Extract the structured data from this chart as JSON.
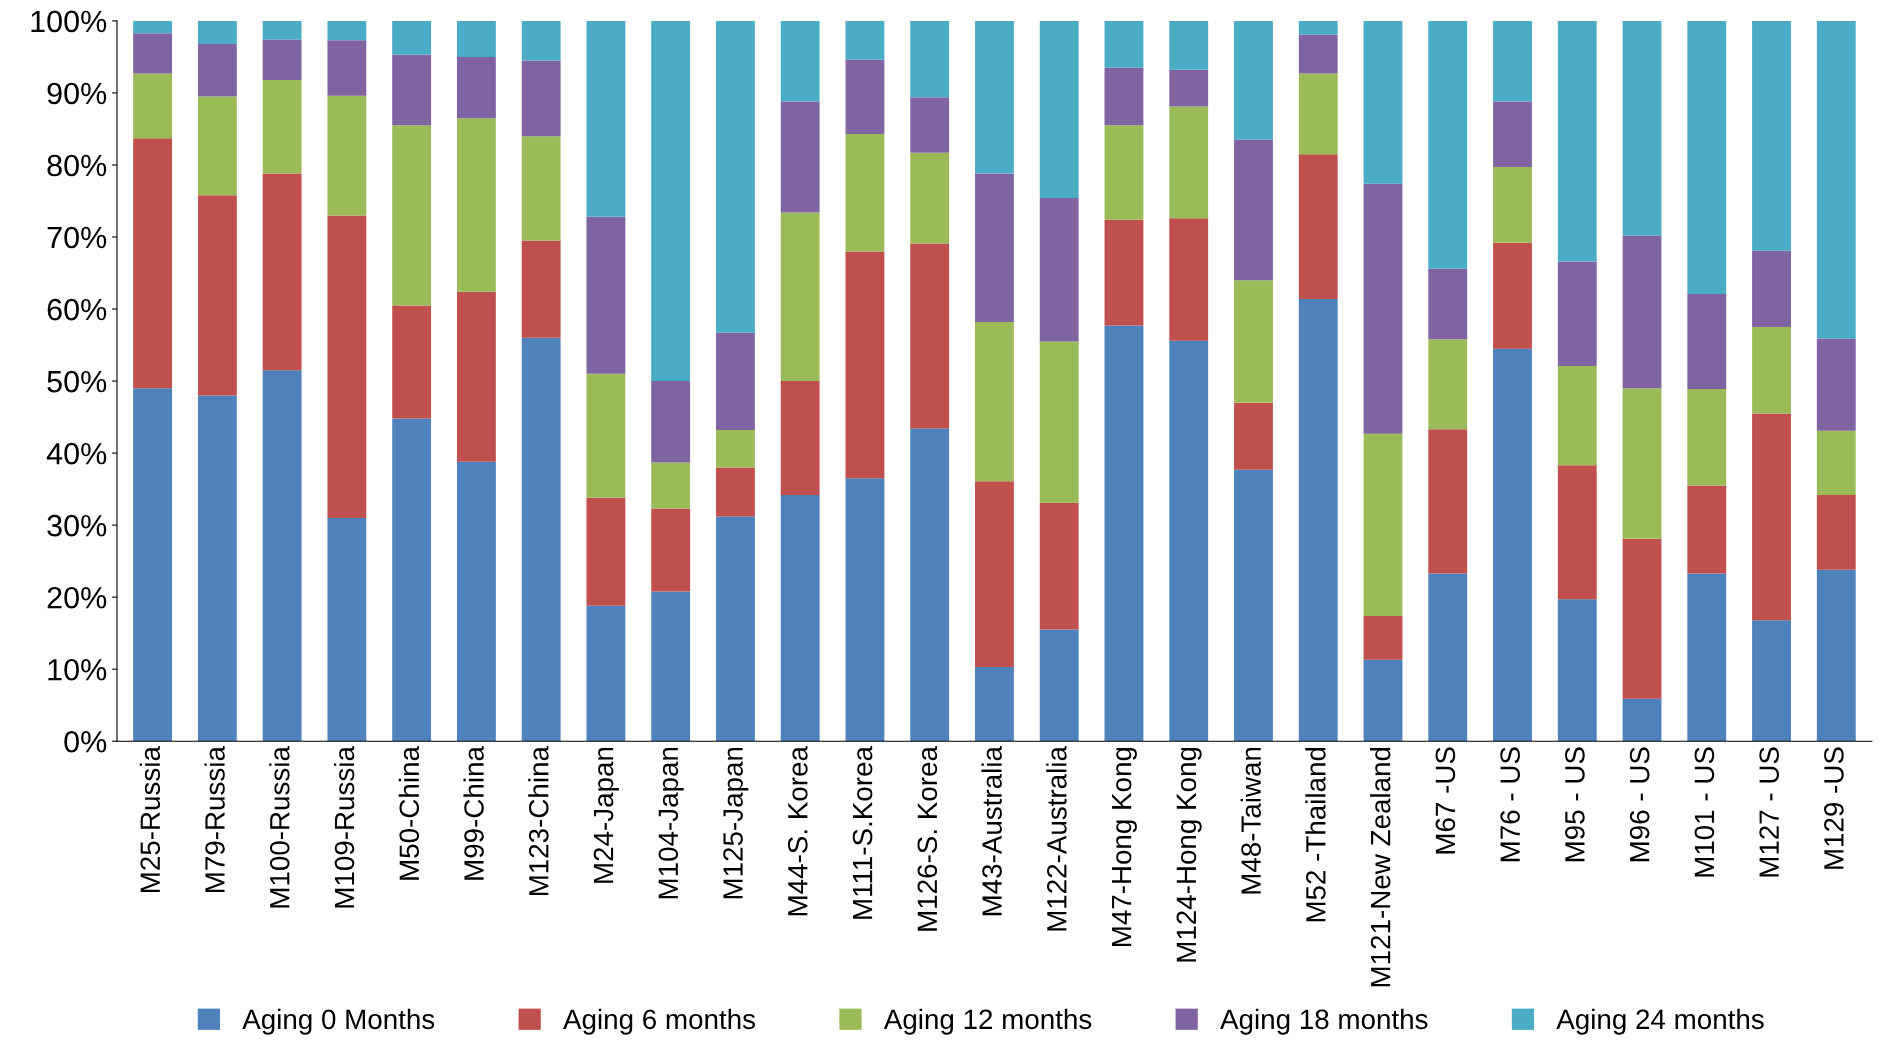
{
  "chart_data": {
    "type": "bar",
    "stacked": true,
    "legend": "bottom",
    "grid": false,
    "categories": [
      "M25-Russia",
      "M79-Russia",
      "M100-Russia",
      "M109-Russia",
      "M50-China",
      "M99-China",
      "M123-China",
      "M24-Japan",
      "M104-Japan",
      "M125-Japan",
      "M44-S. Korea",
      "M111-S.Korea",
      "M126-S. Korea",
      "M43-Australia",
      "M122-Australia",
      "M47-Hong Kong",
      "M124-Hong Kong",
      "M48-Taiwan",
      "M52 -Thailand",
      "M121-New Zealand",
      "M67 -US",
      "M76 - US",
      "M95 - US",
      "M96 - US",
      "M101 - US",
      "M127 - US",
      "M129 -US"
    ],
    "ylim": [
      0,
      100
    ],
    "yticks": [
      {
        "value": 0,
        "label": "0%"
      },
      {
        "value": 10,
        "label": "10%"
      },
      {
        "value": 20,
        "label": "20%"
      },
      {
        "value": 30,
        "label": "30%"
      },
      {
        "value": 40,
        "label": "40%"
      },
      {
        "value": 50,
        "label": "50%"
      },
      {
        "value": 60,
        "label": "60%"
      },
      {
        "value": 70,
        "label": "70%"
      },
      {
        "value": 80,
        "label": "80%"
      },
      {
        "value": 90,
        "label": "90%"
      },
      {
        "value": 100,
        "label": "100%"
      }
    ],
    "series": [
      {
        "name": "Aging 0 Months",
        "color": "#4f81bd",
        "values": [
          49,
          48,
          51.5,
          31,
          44.8,
          38.8,
          56,
          18.8,
          20.8,
          31.2,
          34.2,
          36.5,
          43.4,
          10.3,
          15.5,
          57.7,
          55.6,
          37.7,
          61.4,
          11.3,
          23.3,
          54.5,
          19.7,
          5.9,
          23.3,
          16.8,
          23.8
        ]
      },
      {
        "name": "Aging 6 months",
        "color": "#c0504d",
        "values": [
          34.7,
          27.8,
          27.3,
          42,
          15.7,
          23.6,
          13.5,
          15,
          11.5,
          6.8,
          15.8,
          31.5,
          25.7,
          25.8,
          17.6,
          14.7,
          17,
          9.3,
          20.1,
          6.1,
          20,
          14.7,
          18.6,
          22.2,
          12.2,
          28.7,
          10.4
        ]
      },
      {
        "name": "Aging 12 months",
        "color": "#9bbb59",
        "values": [
          9,
          13.7,
          13,
          16.6,
          25,
          24.1,
          14.5,
          17.2,
          6.4,
          5.2,
          23.4,
          16.3,
          12.6,
          22.1,
          22.4,
          13.1,
          15.5,
          17,
          11.2,
          25.3,
          12.5,
          10.5,
          13.8,
          20.9,
          13.4,
          12,
          8.9
        ]
      },
      {
        "name": "Aging 18 months",
        "color": "#8064a2",
        "values": [
          5.6,
          7.3,
          5.6,
          7.7,
          9.8,
          8.5,
          10.5,
          21.8,
          11.3,
          13.5,
          15.4,
          10.3,
          7.7,
          20.6,
          19.9,
          8,
          5.1,
          19.5,
          5.4,
          34.7,
          9.8,
          9.1,
          14.5,
          21.2,
          13.2,
          10.6,
          12.8
        ]
      },
      {
        "name": "Aging 24 months",
        "color": "#4bacc6",
        "values": [
          1.7,
          3.2,
          2.6,
          2.7,
          4.7,
          5,
          5.5,
          27.2,
          50,
          43.3,
          11.2,
          5.4,
          10.6,
          21.2,
          24.6,
          6.5,
          6.8,
          16.5,
          1.9,
          22.6,
          34.4,
          11.2,
          33.4,
          29.8,
          37.9,
          31.9,
          44.1
        ]
      }
    ]
  }
}
